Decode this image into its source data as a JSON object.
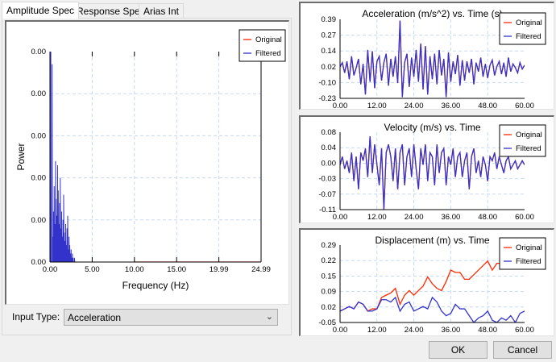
{
  "tabs": [
    {
      "label": "Amplitude Spec",
      "active": true
    },
    {
      "label": "Response Spec"
    },
    {
      "label": "Arias Int"
    }
  ],
  "input_type": {
    "label": "Input Type:",
    "value": "Acceleration"
  },
  "buttons": {
    "ok": "OK",
    "cancel": "Cancel"
  },
  "colors": {
    "original": "#ff2a00",
    "filtered": "#3333cc",
    "grid": "#c5d9f5"
  },
  "chart_data": [
    {
      "id": "spec",
      "type": "line",
      "title": "",
      "xlabel": "Frequency (Hz)",
      "ylabel": "Power",
      "xlim": [
        0,
        24.99
      ],
      "ylim": [
        0,
        0.005
      ],
      "xticks": [
        "0.00",
        "5.00",
        "10.00",
        "15.00",
        "19.99",
        "24.99"
      ],
      "yticks": [
        "0.00",
        "0.00",
        "0.00",
        "0.00",
        "0.00",
        "0.00"
      ],
      "legend": [
        "Original",
        "Filtered"
      ],
      "legend_position": "top-right",
      "series": [
        {
          "name": "Original",
          "x": [
            10,
            24.99
          ],
          "values": [
            0,
            0
          ]
        },
        {
          "name": "Filtered",
          "x0": 0.1,
          "dx": 0.08,
          "values": [
            0.005,
            0.0,
            0.0047,
            0.0006,
            0.0012,
            0.0018,
            0.0009,
            0.0024,
            0.0015,
            0.0011,
            0.0023,
            0.0017,
            0.0009,
            0.0014,
            0.002,
            0.0008,
            0.0012,
            0.0006,
            0.001,
            0.0016,
            0.0007,
            0.0005,
            0.0009,
            0.0004,
            0.0008,
            0.0011,
            0.0003,
            0.0006,
            0.0004,
            0.0002,
            0.0003,
            0.0001,
            0.0002,
            0.0001,
            0,
            0.0001,
            0,
            0,
            0,
            0
          ],
          "tail_to": 10
        }
      ]
    },
    {
      "id": "acc",
      "type": "line",
      "title": "Acceleration (m/s^2) vs. Time (s)",
      "xlim": [
        0,
        60
      ],
      "ylim": [
        -0.23,
        0.39
      ],
      "xticks": [
        "0.00",
        "12.00",
        "24.00",
        "36.00",
        "48.00",
        "60.00"
      ],
      "yticks": [
        "-0.23",
        "-0.10",
        "0.02",
        "0.14",
        "0.27",
        "0.39"
      ],
      "legend": [
        "Original",
        "Filtered"
      ],
      "legend_position": "top-right",
      "series": [
        {
          "name": "Original",
          "same_as": "Filtered"
        },
        {
          "name": "Filtered",
          "values": [
            0.02,
            0.05,
            -0.03,
            0.06,
            -0.08,
            0.1,
            -0.05,
            0.01,
            0.08,
            -0.12,
            0.04,
            -0.2,
            0.15,
            -0.1,
            0.14,
            -0.15,
            0.06,
            0.1,
            -0.09,
            0.05,
            0.12,
            -0.13,
            0.08,
            -0.06,
            0.1,
            -0.11,
            0.38,
            -0.22,
            0.05,
            0.12,
            -0.14,
            0.09,
            -0.06,
            0.15,
            -0.1,
            0.2,
            -0.16,
            0.18,
            -0.2,
            0.1,
            -0.08,
            0.12,
            -0.12,
            0.15,
            -0.05,
            0.08,
            -0.22,
            0.13,
            -0.1,
            0.06,
            -0.04,
            0.11,
            -0.13,
            0.07,
            -0.09,
            0.06,
            -0.03,
            0.08,
            -0.12,
            0.05,
            -0.02,
            0.09,
            -0.06,
            0.04,
            -0.07,
            0.03,
            0.07,
            -0.05,
            0.02,
            0.06,
            -0.04,
            0.05,
            -0.06,
            0.09,
            -0.02,
            0.04,
            0.01,
            -0.03,
            0.05,
            0.0,
            0.03
          ]
        }
      ]
    },
    {
      "id": "vel",
      "type": "line",
      "title": "Velocity (m/s) vs. Time",
      "xlim": [
        0,
        60
      ],
      "ylim": [
        -0.11,
        0.08
      ],
      "xticks": [
        "0.00",
        "12.00",
        "24.00",
        "36.00",
        "48.00",
        "60.00"
      ],
      "yticks": [
        "-0.11",
        "-0.07",
        "-0.03",
        "0.00",
        "0.04",
        "0.08"
      ],
      "legend": [
        "Original",
        "Filtered"
      ],
      "legend_position": "top-right",
      "series": [
        {
          "name": "Original",
          "same_as": "Filtered"
        },
        {
          "name": "Filtered",
          "values": [
            0.0,
            0.02,
            -0.01,
            0.01,
            -0.02,
            0.03,
            -0.04,
            0.02,
            -0.06,
            0.03,
            0.01,
            0.04,
            -0.03,
            0.07,
            -0.02,
            0.05,
            0.0,
            -0.05,
            0.04,
            -0.11,
            0.03,
            0.05,
            0.02,
            -0.04,
            0.04,
            -0.06,
            0.03,
            0.05,
            -0.05,
            0.02,
            0.04,
            -0.03,
            0.05,
            -0.01,
            -0.06,
            0.04,
            0.0,
            0.05,
            -0.04,
            0.03,
            0.02,
            -0.05,
            0.05,
            -0.02,
            0.03,
            0.04,
            -0.05,
            0.02,
            0.0,
            0.04,
            -0.03,
            0.02,
            0.03,
            -0.03,
            0.01,
            0.03,
            -0.06,
            0.02,
            0.04,
            -0.02,
            0.01,
            -0.03,
            0.02,
            0.0,
            -0.04,
            0.02,
            0.01,
            0.03,
            -0.01,
            0.02,
            0.0,
            -0.02,
            0.01,
            0.02,
            -0.01,
            0.0,
            0.01,
            -0.01,
            0.0,
            0.01,
            0.0
          ]
        }
      ]
    },
    {
      "id": "disp",
      "type": "line",
      "title": "Displacement (m) vs. Time",
      "xlim": [
        0,
        60
      ],
      "ylim": [
        -0.05,
        0.29
      ],
      "xticks": [
        "0.00",
        "12.00",
        "24.00",
        "36.00",
        "48.00",
        "60.00"
      ],
      "yticks": [
        "-0.05",
        "0.02",
        "0.09",
        "0.15",
        "0.22",
        "0.29"
      ],
      "legend": [
        "Original",
        "Filtered"
      ],
      "legend_position": "top-right",
      "series": [
        {
          "name": "Original",
          "values": [
            0.0,
            0.01,
            0.02,
            0.01,
            0.04,
            0.03,
            0.0,
            0.01,
            0.01,
            0.06,
            0.07,
            0.08,
            0.1,
            0.03,
            0.07,
            0.09,
            0.07,
            0.09,
            0.11,
            0.15,
            0.12,
            0.1,
            0.09,
            0.13,
            0.18,
            0.17,
            0.17,
            0.14,
            0.14,
            0.16,
            0.18,
            0.2,
            0.22,
            0.18,
            0.21,
            0.21,
            0.22,
            0.22,
            0.21,
            0.25,
            0.28
          ]
        },
        {
          "name": "Filtered",
          "values": [
            0.0,
            0.01,
            0.02,
            0.01,
            0.04,
            0.03,
            0.0,
            0.0,
            0.01,
            0.05,
            0.05,
            0.04,
            0.06,
            0.0,
            0.03,
            0.04,
            0.0,
            0.01,
            0.02,
            0.01,
            0.06,
            0.04,
            0.0,
            -0.02,
            -0.01,
            0.03,
            0.01,
            0.01,
            -0.02,
            -0.05,
            -0.03,
            -0.02,
            0.0,
            -0.04,
            -0.05,
            -0.03,
            -0.04,
            -0.02,
            -0.05,
            -0.01,
            0.0
          ]
        }
      ]
    }
  ]
}
